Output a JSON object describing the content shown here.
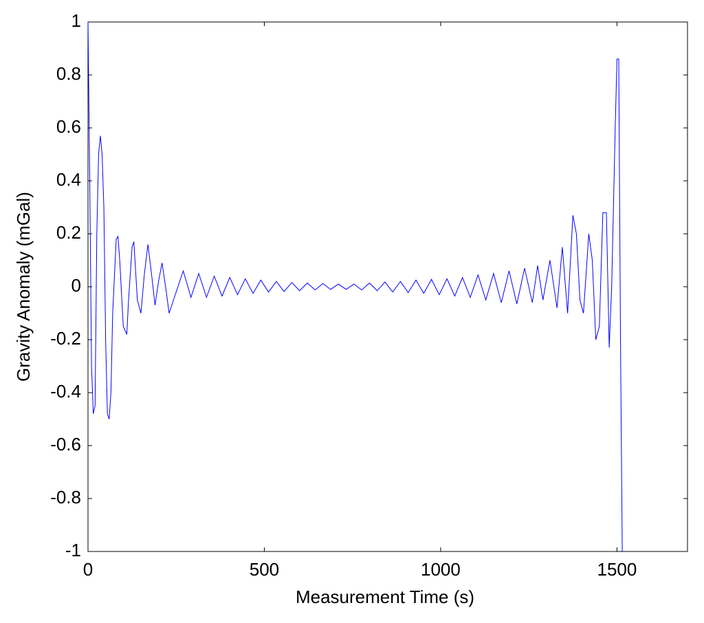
{
  "chart_data": {
    "type": "line",
    "xlabel": "Measurement Time (s)",
    "ylabel": "Gravity Anomaly (mGal)",
    "xlim": [
      0,
      1700
    ],
    "ylim": [
      -1,
      1
    ],
    "xticks": [
      0,
      500,
      1000,
      1500
    ],
    "yticks": [
      -1,
      -0.8,
      -0.6,
      -0.4,
      -0.2,
      0,
      0.2,
      0.4,
      0.6,
      0.8,
      1
    ],
    "grid": false,
    "x": [
      0,
      5,
      10,
      15,
      20,
      25,
      30,
      35,
      40,
      45,
      50,
      55,
      60,
      65,
      70,
      80,
      85,
      90,
      100,
      110,
      115,
      125,
      130,
      140,
      150,
      160,
      170,
      180,
      190,
      200,
      210,
      220,
      230,
      240,
      270,
      292,
      314,
      336,
      358,
      380,
      402,
      424,
      446,
      468,
      490,
      512,
      534,
      556,
      578,
      600,
      622,
      644,
      666,
      688,
      710,
      732,
      754,
      776,
      798,
      820,
      842,
      864,
      886,
      908,
      930,
      952,
      974,
      996,
      1018,
      1040,
      1062,
      1084,
      1106,
      1128,
      1150,
      1172,
      1194,
      1216,
      1238,
      1260,
      1275,
      1290,
      1310,
      1330,
      1345,
      1360,
      1375,
      1385,
      1395,
      1405,
      1420,
      1430,
      1440,
      1450,
      1460,
      1470,
      1478,
      1485,
      1495,
      1500,
      1505,
      1510,
      1515
    ],
    "series": [
      {
        "name": "Gravity Anomaly",
        "color": "#0000ff",
        "values": [
          1,
          0.4,
          -0.3,
          -0.48,
          -0.45,
          0.2,
          0.5,
          0.57,
          0.5,
          0.3,
          -0.2,
          -0.48,
          -0.5,
          -0.4,
          -0.1,
          0.18,
          0.19,
          0.1,
          -0.15,
          -0.18,
          -0.05,
          0.15,
          0.17,
          -0.05,
          -0.1,
          0.05,
          0.16,
          0.05,
          -0.07,
          0.02,
          0.09,
          0.0,
          -0.1,
          -0.06,
          0.06,
          -0.04,
          0.05,
          -0.04,
          0.04,
          -0.035,
          0.035,
          -0.03,
          0.03,
          -0.025,
          0.025,
          -0.02,
          0.02,
          -0.018,
          0.016,
          -0.015,
          0.014,
          -0.012,
          0.012,
          -0.01,
          0.01,
          -0.01,
          0.01,
          -0.012,
          0.014,
          -0.015,
          0.018,
          -0.02,
          0.02,
          -0.022,
          0.025,
          -0.025,
          0.028,
          -0.03,
          0.03,
          -0.035,
          0.035,
          -0.04,
          0.045,
          -0.05,
          0.05,
          -0.06,
          0.06,
          -0.065,
          0.07,
          -0.06,
          0.08,
          -0.05,
          0.1,
          -0.08,
          0.15,
          -0.1,
          0.27,
          0.2,
          -0.05,
          -0.1,
          0.2,
          0.1,
          -0.2,
          -0.15,
          0.28,
          0.28,
          -0.23,
          0.0,
          0.6,
          0.86,
          0.86,
          -0.2,
          -1
        ]
      }
    ]
  }
}
